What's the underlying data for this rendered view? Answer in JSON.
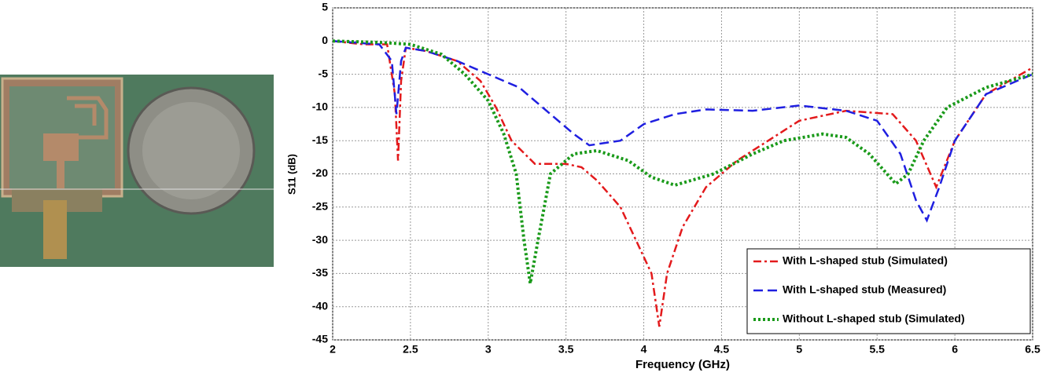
{
  "chart_data": {
    "type": "line",
    "xlabel": "Frequency (GHz)",
    "ylabel": "S11 (dB)",
    "xlim": [
      2,
      6.5
    ],
    "xticks": [
      2,
      2.5,
      3,
      3.5,
      4,
      4.5,
      5,
      5.5,
      6,
      6.5
    ],
    "ylim": [
      -45,
      5
    ],
    "yticks": [
      5,
      0,
      -5,
      -10,
      -15,
      -20,
      -25,
      -30,
      -35,
      -40,
      -45
    ],
    "grid": true,
    "legend": "lower right",
    "series": [
      {
        "name": "With L-shaped stub (Simulated)",
        "color": "#e31a1c",
        "style": "dashdot",
        "x": [
          2.0,
          2.2,
          2.35,
          2.4,
          2.42,
          2.44,
          2.47,
          2.6,
          2.8,
          2.95,
          3.05,
          3.15,
          3.3,
          3.5,
          3.6,
          3.7,
          3.85,
          3.95,
          4.05,
          4.1,
          4.15,
          4.25,
          4.4,
          4.6,
          4.8,
          5.0,
          5.3,
          5.6,
          5.75,
          5.88,
          6.0,
          6.2,
          6.5
        ],
        "values": [
          0,
          -0.5,
          -0.5,
          -8,
          -18,
          -6,
          -1,
          -1.5,
          -3,
          -6,
          -10,
          -15,
          -18.5,
          -18.5,
          -19,
          -21,
          -25,
          -30,
          -35,
          -43,
          -35,
          -28,
          -22,
          -18,
          -15,
          -12,
          -10.5,
          -11,
          -15,
          -22,
          -15,
          -8,
          -4
        ]
      },
      {
        "name": "With L-shaped stub (Measured)",
        "color": "#1f1fe0",
        "style": "dashed",
        "x": [
          2.0,
          2.3,
          2.38,
          2.41,
          2.44,
          2.47,
          2.6,
          2.8,
          3.0,
          3.2,
          3.4,
          3.55,
          3.65,
          3.85,
          4.0,
          4.2,
          4.4,
          4.7,
          5.0,
          5.3,
          5.5,
          5.65,
          5.75,
          5.82,
          5.9,
          6.0,
          6.2,
          6.5
        ],
        "values": [
          0,
          -0.5,
          -3,
          -11,
          -3,
          -1,
          -1.5,
          -3,
          -5,
          -7,
          -11,
          -14,
          -15.7,
          -15,
          -12.5,
          -11,
          -10.3,
          -10.5,
          -9.7,
          -10.5,
          -12,
          -17,
          -24,
          -27,
          -22,
          -15,
          -8,
          -5
        ]
      },
      {
        "name": "Without L-shaped stub (Simulated)",
        "color": "#1a9a1a",
        "style": "dotted",
        "x": [
          2.0,
          2.3,
          2.5,
          2.7,
          2.85,
          3.0,
          3.1,
          3.18,
          3.23,
          3.27,
          3.32,
          3.4,
          3.55,
          3.7,
          3.9,
          4.05,
          4.2,
          4.45,
          4.7,
          4.9,
          5.15,
          5.3,
          5.45,
          5.62,
          5.7,
          5.8,
          5.95,
          6.2,
          6.5
        ],
        "values": [
          0,
          -0.2,
          -0.5,
          -2,
          -5,
          -9,
          -14,
          -20,
          -30,
          -36.5,
          -30,
          -20,
          -17,
          -16.5,
          -18,
          -20.5,
          -21.7,
          -20,
          -17,
          -15,
          -14,
          -14.5,
          -17,
          -21.5,
          -20,
          -15,
          -10,
          -7,
          -5
        ]
      }
    ]
  }
}
